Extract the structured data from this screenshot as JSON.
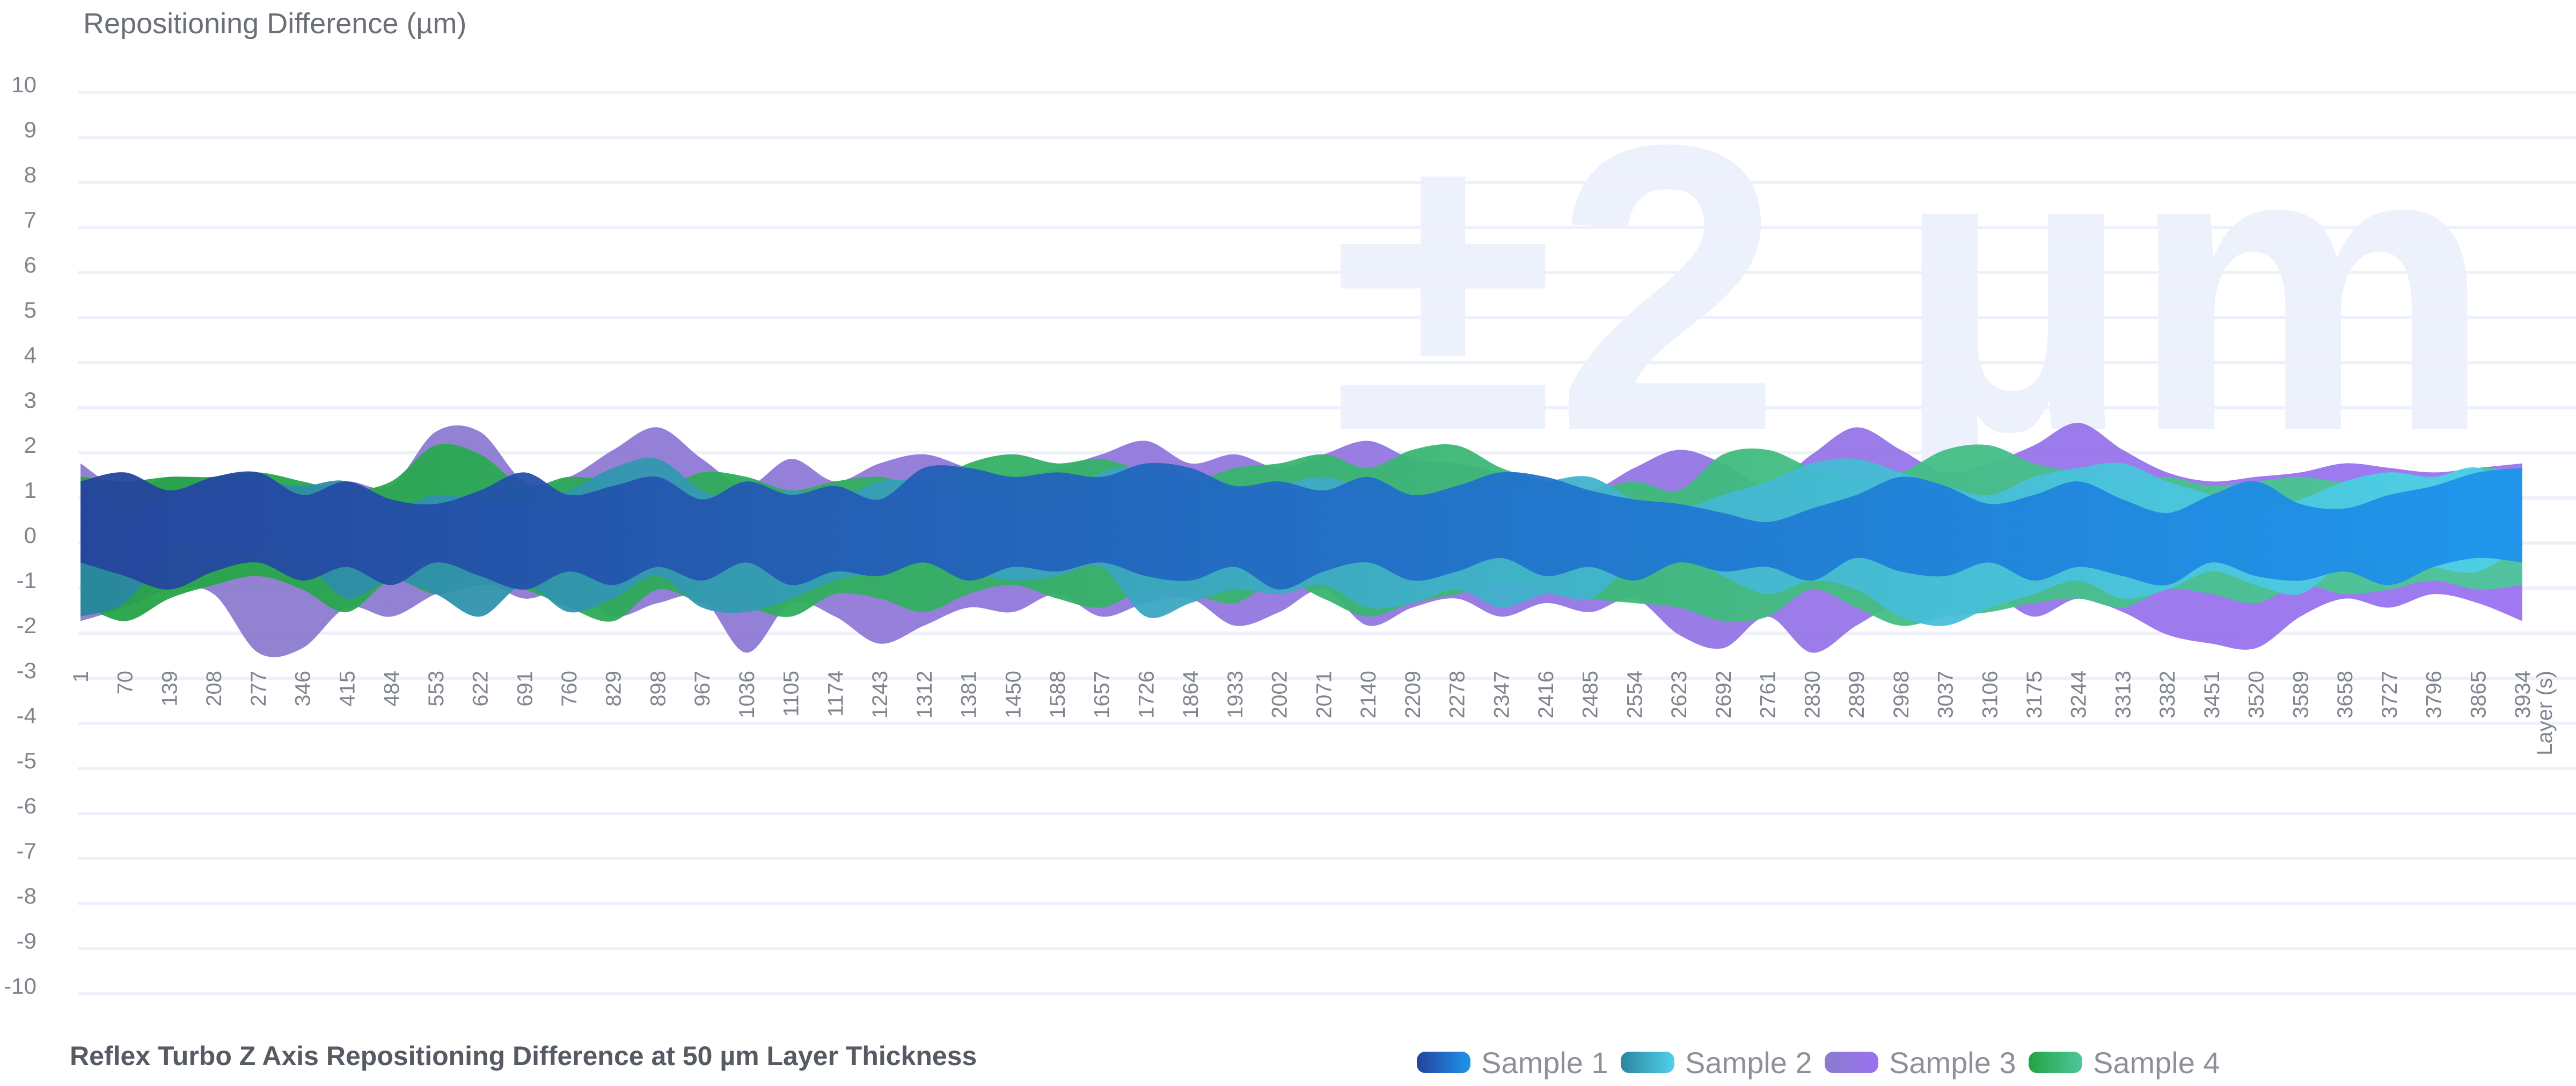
{
  "chart_data": {
    "type": "area",
    "title": "Reflex Turbo Z Axis Repositioning Difference at 50 µm Layer Thickness",
    "ylabel": "Repositioning Difference (µm)",
    "xlabel": "Layer (s)",
    "watermark": "±2 µm",
    "ylim": [
      -10,
      10
    ],
    "yticks": [
      10,
      9,
      8,
      7,
      6,
      5,
      4,
      3,
      2,
      1,
      0,
      -1,
      -2,
      -3,
      -4,
      -5,
      -6,
      -7,
      -8,
      -9,
      -10
    ],
    "x": [
      1,
      70,
      139,
      208,
      277,
      346,
      415,
      484,
      553,
      622,
      691,
      760,
      829,
      898,
      967,
      1036,
      1105,
      1174,
      1243,
      1312,
      1381,
      1450,
      1588,
      1657,
      1726,
      1864,
      1933,
      2002,
      2071,
      2140,
      2209,
      2278,
      2347,
      2416,
      2485,
      2554,
      2623,
      2692,
      2761,
      2830,
      2899,
      2968,
      3037,
      3106,
      3175,
      3244,
      3313,
      3382,
      3451,
      3520,
      3589,
      3658,
      3727,
      3796,
      3865,
      3934
    ],
    "grid": true,
    "legend_position": "bottom-right",
    "series": [
      {
        "name": "Sample 3",
        "colors": [
          "#8b7ccc",
          "#9a72f2"
        ],
        "upper": [
          1.6,
          1.0,
          1.3,
          1.2,
          1.1,
          1.0,
          1.2,
          1.1,
          2.3,
          2.3,
          1.2,
          1.3,
          1.9,
          2.4,
          1.7,
          1.1,
          1.7,
          1.2,
          1.6,
          1.8,
          1.5,
          1.3,
          1.5,
          1.8,
          2.1,
          1.6,
          1.8,
          1.5,
          1.8,
          2.1,
          1.7,
          1.6,
          1.4,
          1.2,
          1.0,
          1.5,
          1.9,
          1.6,
          1.1,
          1.8,
          2.4,
          1.9,
          1.4,
          1.6,
          2.0,
          2.5,
          1.9,
          1.4,
          1.2,
          1.3,
          1.4,
          1.6,
          1.5,
          1.4,
          1.5,
          1.6
        ],
        "lower": [
          -1.9,
          -1.6,
          -1.2,
          -1.3,
          -2.6,
          -2.5,
          -1.6,
          -1.8,
          -1.3,
          -1.0,
          -1.4,
          -1.2,
          -1.8,
          -1.5,
          -1.4,
          -2.6,
          -1.5,
          -1.8,
          -2.4,
          -2.0,
          -1.6,
          -1.7,
          -1.3,
          -1.8,
          -1.5,
          -1.4,
          -2.0,
          -1.7,
          -1.2,
          -2.0,
          -1.6,
          -1.4,
          -1.8,
          -1.5,
          -1.7,
          -1.4,
          -2.2,
          -2.5,
          -1.8,
          -2.6,
          -2.0,
          -1.5,
          -1.6,
          -1.3,
          -1.8,
          -1.4,
          -1.7,
          -2.2,
          -2.4,
          -2.5,
          -1.8,
          -1.4,
          -1.6,
          -1.3,
          -1.5,
          -1.9
        ]
      },
      {
        "name": "Sample 4",
        "colors": [
          "#23a344",
          "#4ec79a"
        ],
        "upper": [
          1.3,
          1.2,
          1.3,
          1.3,
          1.4,
          1.2,
          1.0,
          1.2,
          2.0,
          1.8,
          1.1,
          1.3,
          1.2,
          1.0,
          1.4,
          1.3,
          1.0,
          1.2,
          1.3,
          1.1,
          1.6,
          1.8,
          1.6,
          1.7,
          1.4,
          1.2,
          1.5,
          1.6,
          1.8,
          1.5,
          1.9,
          2.0,
          1.5,
          1.2,
          1.0,
          1.2,
          1.0,
          1.8,
          1.9,
          1.5,
          1.3,
          1.4,
          1.9,
          2.0,
          1.6,
          1.4,
          1.2,
          1.3,
          1.1,
          1.2,
          1.3,
          1.2,
          1.4,
          1.3,
          1.5,
          1.4
        ],
        "lower": [
          -1.5,
          -1.9,
          -1.4,
          -1.1,
          -0.9,
          -1.2,
          -1.7,
          -1.0,
          -1.3,
          -1.1,
          -1.2,
          -1.6,
          -1.9,
          -1.2,
          -1.5,
          -1.6,
          -1.8,
          -1.3,
          -1.4,
          -1.7,
          -1.3,
          -1.1,
          -1.4,
          -1.6,
          -1.2,
          -1.3,
          -1.5,
          -1.0,
          -1.4,
          -1.8,
          -1.5,
          -1.3,
          -1.1,
          -1.2,
          -1.4,
          -1.5,
          -1.6,
          -1.9,
          -1.8,
          -1.2,
          -1.6,
          -2.0,
          -1.8,
          -1.7,
          -1.5,
          -1.4,
          -1.6,
          -1.2,
          -1.3,
          -1.5,
          -1.1,
          -1.3,
          -1.2,
          -1.0,
          -1.2,
          -1.1
        ]
      },
      {
        "name": "Sample 2",
        "colors": [
          "#2a86a0",
          "#4fd0ea"
        ],
        "upper": [
          1.1,
          0.5,
          0.9,
          1.2,
          1.2,
          1.1,
          1.2,
          0.6,
          0.9,
          0.8,
          0.7,
          1.0,
          1.5,
          1.7,
          1.0,
          0.7,
          1.0,
          0.8,
          1.2,
          1.2,
          1.0,
          0.8,
          0.7,
          1.4,
          1.5,
          1.2,
          0.9,
          1.1,
          1.3,
          1.0,
          0.7,
          0.9,
          1.1,
          1.2,
          1.3,
          0.8,
          0.6,
          0.9,
          1.2,
          1.6,
          1.7,
          1.4,
          1.1,
          0.9,
          1.3,
          1.5,
          1.6,
          1.2,
          0.9,
          0.6,
          0.8,
          1.2,
          1.4,
          1.3,
          1.5,
          0.9
        ],
        "lower": [
          -1.8,
          -1.5,
          -0.4,
          -0.2,
          -0.4,
          -0.6,
          -1.4,
          -1.0,
          -1.3,
          -1.8,
          -1.1,
          -1.7,
          -1.4,
          -0.9,
          -1.6,
          -1.7,
          -1.4,
          -1.0,
          -0.8,
          -0.6,
          -0.8,
          -1.0,
          -0.9,
          -0.7,
          -1.8,
          -1.5,
          -1.2,
          -1.3,
          -1.1,
          -1.6,
          -1.5,
          -1.2,
          -1.6,
          -1.3,
          -1.4,
          -0.6,
          -0.4,
          -0.9,
          -1.3,
          -1.0,
          -1.2,
          -1.8,
          -2.0,
          -1.6,
          -1.3,
          -1.0,
          -1.4,
          -1.2,
          -0.8,
          -1.1,
          -1.3,
          -0.6,
          -0.5,
          -0.7,
          -0.8,
          -0.2
        ]
      },
      {
        "name": "Sample 1",
        "colors": [
          "#25439c",
          "#1e94ec"
        ],
        "upper": [
          1.2,
          1.4,
          1.0,
          1.3,
          1.4,
          0.9,
          1.2,
          0.8,
          0.7,
          1.0,
          1.4,
          0.9,
          1.1,
          1.3,
          0.8,
          1.2,
          0.9,
          1.1,
          0.8,
          1.5,
          1.5,
          1.3,
          1.4,
          1.3,
          1.6,
          1.5,
          1.1,
          1.2,
          1.0,
          1.3,
          0.9,
          1.1,
          1.4,
          1.3,
          1.0,
          0.8,
          0.7,
          0.5,
          0.3,
          0.6,
          0.9,
          1.3,
          1.1,
          0.7,
          0.9,
          1.2,
          0.8,
          0.5,
          0.9,
          1.2,
          0.7,
          0.6,
          0.9,
          1.1,
          1.4,
          1.5
        ],
        "lower": [
          -0.6,
          -0.9,
          -1.2,
          -0.8,
          -0.6,
          -1.0,
          -0.7,
          -1.1,
          -0.6,
          -0.9,
          -1.2,
          -0.8,
          -1.1,
          -0.7,
          -1.0,
          -0.6,
          -1.1,
          -0.8,
          -0.9,
          -0.6,
          -1.0,
          -0.7,
          -0.8,
          -0.6,
          -0.9,
          -1.0,
          -0.7,
          -1.2,
          -0.8,
          -0.6,
          -1.0,
          -0.8,
          -0.5,
          -0.9,
          -0.7,
          -1.0,
          -0.6,
          -0.8,
          -0.7,
          -1.0,
          -0.5,
          -0.8,
          -0.9,
          -0.6,
          -1.0,
          -0.7,
          -0.9,
          -1.1,
          -0.6,
          -0.9,
          -1.0,
          -0.8,
          -1.1,
          -0.7,
          -0.5,
          -0.6
        ]
      }
    ],
    "legend": [
      "Sample 1",
      "Sample 2",
      "Sample 3",
      "Sample 4"
    ]
  }
}
